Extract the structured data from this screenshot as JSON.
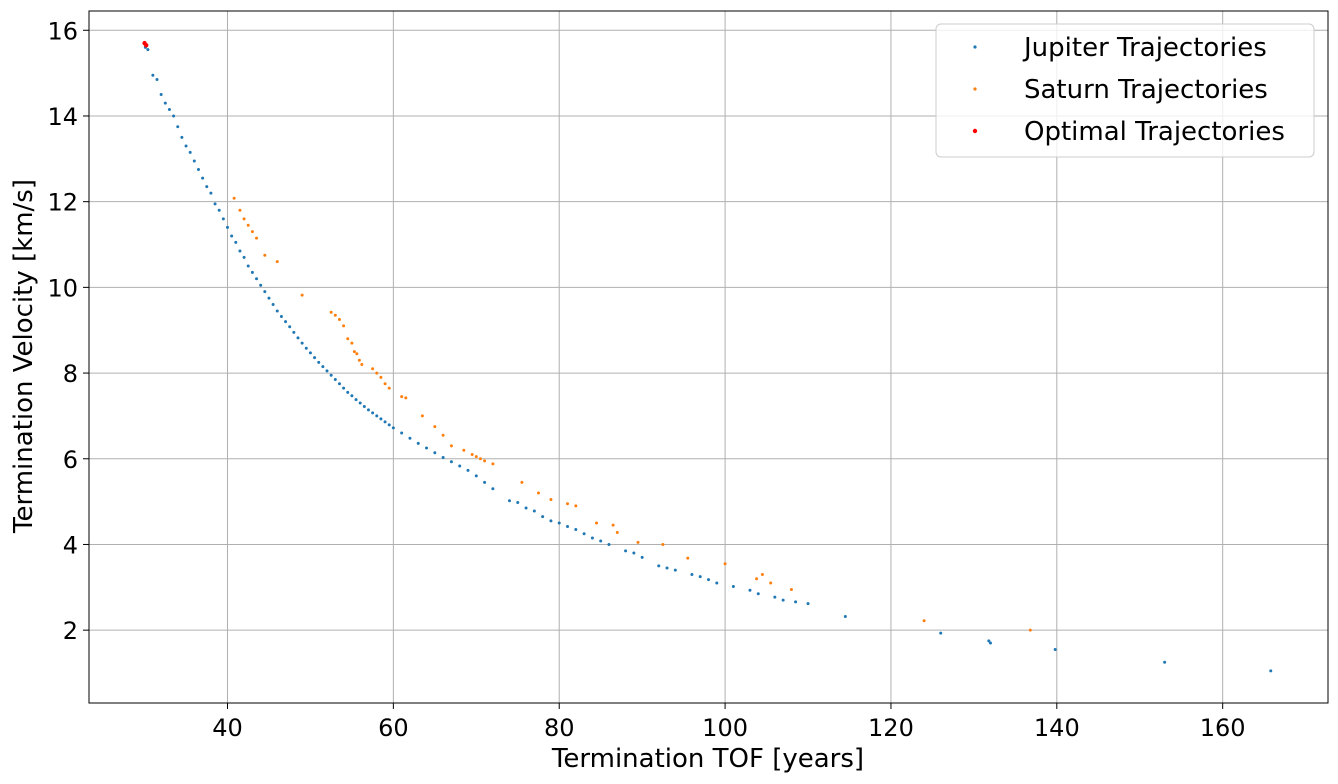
{
  "chart_data": {
    "type": "scatter",
    "title": "",
    "xlabel": "Termination TOF [years]",
    "ylabel": "Termination Velocity [km/s]",
    "xlim": [
      23.3,
      172.7
    ],
    "ylim": [
      0.3,
      16.45
    ],
    "xticks": [
      40,
      60,
      80,
      100,
      120,
      140,
      160
    ],
    "yticks": [
      2,
      4,
      6,
      8,
      10,
      12,
      14,
      16
    ],
    "grid": true,
    "legend_position": "top-right",
    "series": [
      {
        "name": "Jupiter Trajectories",
        "color": "#1f77b4",
        "x": [
          30.1,
          30.4,
          31.0,
          31.5,
          32.0,
          32.5,
          33.0,
          33.5,
          34.0,
          34.5,
          35.0,
          35.5,
          36.0,
          36.5,
          37.0,
          37.5,
          38.0,
          38.5,
          39.0,
          39.5,
          40.0,
          40.5,
          41.0,
          41.5,
          42.0,
          42.5,
          43.0,
          43.5,
          44.0,
          44.5,
          45.0,
          45.5,
          46.0,
          46.5,
          47.0,
          47.5,
          48.0,
          48.5,
          49.0,
          49.5,
          50.0,
          50.5,
          51.0,
          51.5,
          52.0,
          52.5,
          53.0,
          53.5,
          54.0,
          54.5,
          55.0,
          55.5,
          56.0,
          56.5,
          57.0,
          57.5,
          58.0,
          58.5,
          59.0,
          59.5,
          60.0,
          61.0,
          62.0,
          63.0,
          64.0,
          65.0,
          66.0,
          67.0,
          68.0,
          69.0,
          70.0,
          71.0,
          72.0,
          74.0,
          75.0,
          76.0,
          77.0,
          78.0,
          79.0,
          80.0,
          81.0,
          82.0,
          83.0,
          84.0,
          85.0,
          86.0,
          88.0,
          89.0,
          90.0,
          92.0,
          93.0,
          94.0,
          96.0,
          97.0,
          98.0,
          99.0,
          101.0,
          103.0,
          104.0,
          106.0,
          107.0,
          108.5,
          110.0,
          114.5,
          126.0,
          131.8,
          132.0,
          139.8,
          153.0,
          165.8
        ],
        "y": [
          15.6,
          15.55,
          14.95,
          14.85,
          14.5,
          14.3,
          14.15,
          14.0,
          13.75,
          13.5,
          13.3,
          13.15,
          12.95,
          12.75,
          12.55,
          12.35,
          12.2,
          11.95,
          11.8,
          11.6,
          11.4,
          11.2,
          11.05,
          10.85,
          10.7,
          10.5,
          10.35,
          10.2,
          10.05,
          9.9,
          9.75,
          9.6,
          9.45,
          9.32,
          9.2,
          9.08,
          8.95,
          8.82,
          8.7,
          8.58,
          8.47,
          8.36,
          8.25,
          8.15,
          8.05,
          7.95,
          7.85,
          7.75,
          7.65,
          7.55,
          7.47,
          7.38,
          7.3,
          7.22,
          7.14,
          7.07,
          7.0,
          6.93,
          6.86,
          6.79,
          6.72,
          6.6,
          6.48,
          6.36,
          6.25,
          6.14,
          6.03,
          5.93,
          5.83,
          5.73,
          5.6,
          5.45,
          5.3,
          5.02,
          4.98,
          4.85,
          4.78,
          4.65,
          4.55,
          4.5,
          4.42,
          4.35,
          4.25,
          4.15,
          4.08,
          4.0,
          3.85,
          3.8,
          3.7,
          3.5,
          3.45,
          3.4,
          3.3,
          3.25,
          3.18,
          3.1,
          3.02,
          2.93,
          2.85,
          2.77,
          2.7,
          2.66,
          2.62,
          2.32,
          1.93,
          1.75,
          1.7,
          1.55,
          1.25,
          1.05
        ]
      },
      {
        "name": "Saturn Trajectories",
        "color": "#ff7f0e",
        "x": [
          40.8,
          41.5,
          42.0,
          42.5,
          43.0,
          43.5,
          44.5,
          46.0,
          49.0,
          52.5,
          53.0,
          53.5,
          54.0,
          54.5,
          55.0,
          55.3,
          55.6,
          55.9,
          56.2,
          57.5,
          58.0,
          58.5,
          59.0,
          59.5,
          61.0,
          61.5,
          63.5,
          65.0,
          66.0,
          67.0,
          68.5,
          69.5,
          70.0,
          70.5,
          71.0,
          72.0,
          75.5,
          77.5,
          79.0,
          81.0,
          82.0,
          84.5,
          86.5,
          87.0,
          89.5,
          92.5,
          95.5,
          100.0,
          103.8,
          104.5,
          105.5,
          108.0,
          124.0,
          136.8
        ],
        "y": [
          12.08,
          11.8,
          11.6,
          11.45,
          11.3,
          11.15,
          10.75,
          10.6,
          9.82,
          9.42,
          9.35,
          9.25,
          9.1,
          8.8,
          8.7,
          8.5,
          8.45,
          8.3,
          8.2,
          8.1,
          8.0,
          7.9,
          7.75,
          7.65,
          7.45,
          7.42,
          7.0,
          6.75,
          6.55,
          6.3,
          6.2,
          6.1,
          6.05,
          6.0,
          5.95,
          5.88,
          5.45,
          5.2,
          5.05,
          4.95,
          4.9,
          4.5,
          4.45,
          4.28,
          4.05,
          4.0,
          3.68,
          3.55,
          3.2,
          3.3,
          3.1,
          2.95,
          2.22,
          2.0
        ]
      },
      {
        "name": "Optimal Trajectories",
        "color": "#ff0000",
        "x": [
          30.0,
          30.2
        ],
        "y": [
          15.7,
          15.65
        ]
      }
    ]
  }
}
